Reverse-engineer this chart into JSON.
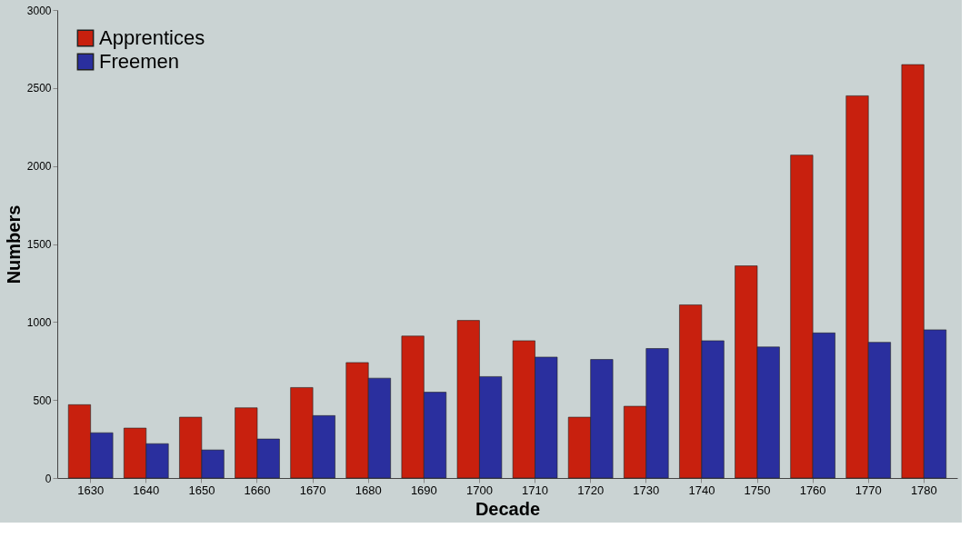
{
  "chart_data": {
    "type": "bar",
    "xlabel": "Decade",
    "ylabel": "Numbers",
    "categories": [
      "1630",
      "1640",
      "1650",
      "1660",
      "1670",
      "1680",
      "1690",
      "1700",
      "1710",
      "1720",
      "1730",
      "1740",
      "1750",
      "1760",
      "1770",
      "1780"
    ],
    "series": [
      {
        "name": "Apprentices",
        "color": "#c8200e",
        "values": [
          470,
          320,
          390,
          450,
          580,
          740,
          910,
          1010,
          880,
          390,
          460,
          1110,
          1360,
          2070,
          2450,
          2650
        ]
      },
      {
        "name": "Freemen",
        "color": "#2a2f9e",
        "values": [
          290,
          220,
          180,
          250,
          400,
          640,
          550,
          650,
          775,
          760,
          830,
          880,
          840,
          930,
          870,
          950
        ]
      }
    ],
    "ylim": [
      0,
      3000
    ],
    "yticks": [
      0,
      500,
      1000,
      1500,
      2000,
      2500,
      3000
    ],
    "grid": false,
    "legend": "top left"
  }
}
